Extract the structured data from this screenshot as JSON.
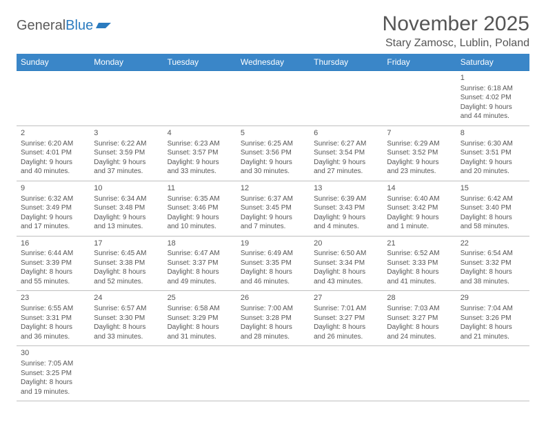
{
  "logo": {
    "text_general": "General",
    "text_blue": "Blue"
  },
  "title": "November 2025",
  "location": "Stary Zamosc, Lublin, Poland",
  "colors": {
    "header_bg": "#3a86c8",
    "header_text": "#ffffff",
    "rule": "#2b7bbf",
    "body_text": "#555555",
    "light_rule": "#bfbfbf"
  },
  "day_headers": [
    "Sunday",
    "Monday",
    "Tuesday",
    "Wednesday",
    "Thursday",
    "Friday",
    "Saturday"
  ],
  "weeks": [
    [
      null,
      null,
      null,
      null,
      null,
      null,
      {
        "n": "1",
        "sunrise": "Sunrise: 6:18 AM",
        "sunset": "Sunset: 4:02 PM",
        "daylight": "Daylight: 9 hours and 44 minutes."
      }
    ],
    [
      {
        "n": "2",
        "sunrise": "Sunrise: 6:20 AM",
        "sunset": "Sunset: 4:01 PM",
        "daylight": "Daylight: 9 hours and 40 minutes."
      },
      {
        "n": "3",
        "sunrise": "Sunrise: 6:22 AM",
        "sunset": "Sunset: 3:59 PM",
        "daylight": "Daylight: 9 hours and 37 minutes."
      },
      {
        "n": "4",
        "sunrise": "Sunrise: 6:23 AM",
        "sunset": "Sunset: 3:57 PM",
        "daylight": "Daylight: 9 hours and 33 minutes."
      },
      {
        "n": "5",
        "sunrise": "Sunrise: 6:25 AM",
        "sunset": "Sunset: 3:56 PM",
        "daylight": "Daylight: 9 hours and 30 minutes."
      },
      {
        "n": "6",
        "sunrise": "Sunrise: 6:27 AM",
        "sunset": "Sunset: 3:54 PM",
        "daylight": "Daylight: 9 hours and 27 minutes."
      },
      {
        "n": "7",
        "sunrise": "Sunrise: 6:29 AM",
        "sunset": "Sunset: 3:52 PM",
        "daylight": "Daylight: 9 hours and 23 minutes."
      },
      {
        "n": "8",
        "sunrise": "Sunrise: 6:30 AM",
        "sunset": "Sunset: 3:51 PM",
        "daylight": "Daylight: 9 hours and 20 minutes."
      }
    ],
    [
      {
        "n": "9",
        "sunrise": "Sunrise: 6:32 AM",
        "sunset": "Sunset: 3:49 PM",
        "daylight": "Daylight: 9 hours and 17 minutes."
      },
      {
        "n": "10",
        "sunrise": "Sunrise: 6:34 AM",
        "sunset": "Sunset: 3:48 PM",
        "daylight": "Daylight: 9 hours and 13 minutes."
      },
      {
        "n": "11",
        "sunrise": "Sunrise: 6:35 AM",
        "sunset": "Sunset: 3:46 PM",
        "daylight": "Daylight: 9 hours and 10 minutes."
      },
      {
        "n": "12",
        "sunrise": "Sunrise: 6:37 AM",
        "sunset": "Sunset: 3:45 PM",
        "daylight": "Daylight: 9 hours and 7 minutes."
      },
      {
        "n": "13",
        "sunrise": "Sunrise: 6:39 AM",
        "sunset": "Sunset: 3:43 PM",
        "daylight": "Daylight: 9 hours and 4 minutes."
      },
      {
        "n": "14",
        "sunrise": "Sunrise: 6:40 AM",
        "sunset": "Sunset: 3:42 PM",
        "daylight": "Daylight: 9 hours and 1 minute."
      },
      {
        "n": "15",
        "sunrise": "Sunrise: 6:42 AM",
        "sunset": "Sunset: 3:40 PM",
        "daylight": "Daylight: 8 hours and 58 minutes."
      }
    ],
    [
      {
        "n": "16",
        "sunrise": "Sunrise: 6:44 AM",
        "sunset": "Sunset: 3:39 PM",
        "daylight": "Daylight: 8 hours and 55 minutes."
      },
      {
        "n": "17",
        "sunrise": "Sunrise: 6:45 AM",
        "sunset": "Sunset: 3:38 PM",
        "daylight": "Daylight: 8 hours and 52 minutes."
      },
      {
        "n": "18",
        "sunrise": "Sunrise: 6:47 AM",
        "sunset": "Sunset: 3:37 PM",
        "daylight": "Daylight: 8 hours and 49 minutes."
      },
      {
        "n": "19",
        "sunrise": "Sunrise: 6:49 AM",
        "sunset": "Sunset: 3:35 PM",
        "daylight": "Daylight: 8 hours and 46 minutes."
      },
      {
        "n": "20",
        "sunrise": "Sunrise: 6:50 AM",
        "sunset": "Sunset: 3:34 PM",
        "daylight": "Daylight: 8 hours and 43 minutes."
      },
      {
        "n": "21",
        "sunrise": "Sunrise: 6:52 AM",
        "sunset": "Sunset: 3:33 PM",
        "daylight": "Daylight: 8 hours and 41 minutes."
      },
      {
        "n": "22",
        "sunrise": "Sunrise: 6:54 AM",
        "sunset": "Sunset: 3:32 PM",
        "daylight": "Daylight: 8 hours and 38 minutes."
      }
    ],
    [
      {
        "n": "23",
        "sunrise": "Sunrise: 6:55 AM",
        "sunset": "Sunset: 3:31 PM",
        "daylight": "Daylight: 8 hours and 36 minutes."
      },
      {
        "n": "24",
        "sunrise": "Sunrise: 6:57 AM",
        "sunset": "Sunset: 3:30 PM",
        "daylight": "Daylight: 8 hours and 33 minutes."
      },
      {
        "n": "25",
        "sunrise": "Sunrise: 6:58 AM",
        "sunset": "Sunset: 3:29 PM",
        "daylight": "Daylight: 8 hours and 31 minutes."
      },
      {
        "n": "26",
        "sunrise": "Sunrise: 7:00 AM",
        "sunset": "Sunset: 3:28 PM",
        "daylight": "Daylight: 8 hours and 28 minutes."
      },
      {
        "n": "27",
        "sunrise": "Sunrise: 7:01 AM",
        "sunset": "Sunset: 3:27 PM",
        "daylight": "Daylight: 8 hours and 26 minutes."
      },
      {
        "n": "28",
        "sunrise": "Sunrise: 7:03 AM",
        "sunset": "Sunset: 3:27 PM",
        "daylight": "Daylight: 8 hours and 24 minutes."
      },
      {
        "n": "29",
        "sunrise": "Sunrise: 7:04 AM",
        "sunset": "Sunset: 3:26 PM",
        "daylight": "Daylight: 8 hours and 21 minutes."
      }
    ],
    [
      {
        "n": "30",
        "sunrise": "Sunrise: 7:05 AM",
        "sunset": "Sunset: 3:25 PM",
        "daylight": "Daylight: 8 hours and 19 minutes."
      },
      null,
      null,
      null,
      null,
      null,
      null
    ]
  ]
}
